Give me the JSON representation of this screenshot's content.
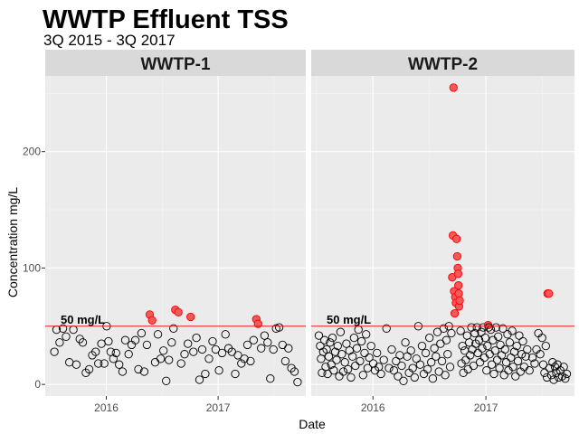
{
  "chart_data": {
    "type": "scatter",
    "title": "WWTP Effluent TSS",
    "subtitle": "3Q 2015 - 3Q 2017",
    "xlabel": "Date",
    "ylabel": "Concentration mg/L",
    "x_ticks": [
      "2016",
      "2017"
    ],
    "y_ticks": [
      0,
      100,
      200
    ],
    "xlim": [
      "2015-06-15",
      "2017-10-15"
    ],
    "ylim": [
      -10,
      265
    ],
    "grid": true,
    "reference_line": {
      "value": 50,
      "label": "50 mg/L",
      "color": "#e41a1c"
    },
    "point_colors": {
      "below": "#000000",
      "above": "#ff0000",
      "above_fill": "#f25a5a"
    },
    "panels": [
      {
        "name": "WWTP-1",
        "points": [
          [
            "2015-07-15",
            28
          ],
          [
            "2015-07-22",
            47
          ],
          [
            "2015-08-01",
            36
          ],
          [
            "2015-08-12",
            48
          ],
          [
            "2015-08-22",
            41
          ],
          [
            "2015-09-02",
            19
          ],
          [
            "2015-09-15",
            47
          ],
          [
            "2015-09-25",
            17
          ],
          [
            "2015-10-06",
            39
          ],
          [
            "2015-10-16",
            36
          ],
          [
            "2015-10-26",
            10
          ],
          [
            "2015-11-06",
            13
          ],
          [
            "2015-11-16",
            25
          ],
          [
            "2015-11-27",
            28
          ],
          [
            "2015-12-06",
            18
          ],
          [
            "2015-12-16",
            35
          ],
          [
            "2015-12-25",
            18
          ],
          [
            "2016-01-02",
            50
          ],
          [
            "2016-01-08",
            37
          ],
          [
            "2016-01-15",
            28
          ],
          [
            "2016-01-24",
            22
          ],
          [
            "2016-02-02",
            27
          ],
          [
            "2016-02-12",
            17
          ],
          [
            "2016-02-23",
            11
          ],
          [
            "2016-03-03",
            38
          ],
          [
            "2016-03-14",
            26
          ],
          [
            "2016-03-24",
            34
          ],
          [
            "2016-04-05",
            38
          ],
          [
            "2016-04-15",
            13
          ],
          [
            "2016-04-25",
            44
          ],
          [
            "2016-05-04",
            11
          ],
          [
            "2016-05-13",
            34
          ],
          [
            "2016-05-22",
            60
          ],
          [
            "2016-05-30",
            55
          ],
          [
            "2016-06-09",
            19
          ],
          [
            "2016-06-18",
            43
          ],
          [
            "2016-06-27",
            22
          ],
          [
            "2016-07-06",
            29
          ],
          [
            "2016-07-15",
            3
          ],
          [
            "2016-07-24",
            21
          ],
          [
            "2016-08-02",
            36
          ],
          [
            "2016-08-08",
            48
          ],
          [
            "2016-08-14",
            64
          ],
          [
            "2016-08-24",
            62
          ],
          [
            "2016-09-02",
            18
          ],
          [
            "2016-09-13",
            26
          ],
          [
            "2016-09-24",
            35
          ],
          [
            "2016-10-03",
            58
          ],
          [
            "2016-10-12",
            28
          ],
          [
            "2016-10-22",
            40
          ],
          [
            "2016-11-01",
            4
          ],
          [
            "2016-11-10",
            30
          ],
          [
            "2016-11-20",
            9
          ],
          [
            "2016-12-02",
            22
          ],
          [
            "2016-12-14",
            37
          ],
          [
            "2016-12-24",
            30
          ],
          [
            "2017-01-04",
            12
          ],
          [
            "2017-01-14",
            27
          ],
          [
            "2017-01-25",
            43
          ],
          [
            "2017-02-04",
            31
          ],
          [
            "2017-02-15",
            28
          ],
          [
            "2017-02-26",
            9
          ],
          [
            "2017-03-07",
            25
          ],
          [
            "2017-03-18",
            18
          ],
          [
            "2017-03-28",
            22
          ],
          [
            "2017-04-07",
            34
          ],
          [
            "2017-04-17",
            20
          ],
          [
            "2017-04-27",
            38
          ],
          [
            "2017-05-06",
            56
          ],
          [
            "2017-05-12",
            52
          ],
          [
            "2017-05-22",
            31
          ],
          [
            "2017-06-02",
            42
          ],
          [
            "2017-06-12",
            36
          ],
          [
            "2017-06-21",
            5
          ],
          [
            "2017-07-01",
            30
          ],
          [
            "2017-07-10",
            48
          ],
          [
            "2017-07-20",
            49
          ],
          [
            "2017-07-31",
            34
          ],
          [
            "2017-08-09",
            20
          ],
          [
            "2017-08-19",
            31
          ],
          [
            "2017-08-29",
            14
          ],
          [
            "2017-09-08",
            11
          ],
          [
            "2017-09-18",
            2
          ]
        ]
      },
      {
        "name": "WWTP-2",
        "points": [
          [
            "2015-07-10",
            42
          ],
          [
            "2015-07-14",
            33
          ],
          [
            "2015-07-17",
            22
          ],
          [
            "2015-07-20",
            10
          ],
          [
            "2015-07-24",
            28
          ],
          [
            "2015-07-28",
            38
          ],
          [
            "2015-08-01",
            15
          ],
          [
            "2015-08-04",
            30
          ],
          [
            "2015-08-07",
            9
          ],
          [
            "2015-08-11",
            24
          ],
          [
            "2015-08-15",
            36
          ],
          [
            "2015-08-19",
            17
          ],
          [
            "2015-08-23",
            40
          ],
          [
            "2015-08-27",
            12
          ],
          [
            "2015-09-01",
            28
          ],
          [
            "2015-09-05",
            21
          ],
          [
            "2015-09-09",
            33
          ],
          [
            "2015-09-14",
            7
          ],
          [
            "2015-09-18",
            45
          ],
          [
            "2015-09-22",
            26
          ],
          [
            "2015-09-27",
            11
          ],
          [
            "2015-10-02",
            19
          ],
          [
            "2015-10-07",
            35
          ],
          [
            "2015-10-12",
            13
          ],
          [
            "2015-10-17",
            29
          ],
          [
            "2015-10-22",
            6
          ],
          [
            "2015-10-27",
            24
          ],
          [
            "2015-11-01",
            40
          ],
          [
            "2015-11-05",
            16
          ],
          [
            "2015-11-10",
            31
          ],
          [
            "2015-11-15",
            47
          ],
          [
            "2015-11-20",
            20
          ],
          [
            "2015-11-25",
            37
          ],
          [
            "2015-11-30",
            8
          ],
          [
            "2015-12-05",
            27
          ],
          [
            "2015-12-10",
            43
          ],
          [
            "2015-12-15",
            14
          ],
          [
            "2015-12-20",
            23
          ],
          [
            "2015-12-26",
            33
          ],
          [
            "2016-01-02",
            18
          ],
          [
            "2016-01-08",
            12
          ],
          [
            "2016-01-14",
            27
          ],
          [
            "2016-01-20",
            15
          ],
          [
            "2016-01-27",
            9
          ],
          [
            "2016-02-05",
            21
          ],
          [
            "2016-02-14",
            48
          ],
          [
            "2016-02-22",
            14
          ],
          [
            "2016-03-02",
            30
          ],
          [
            "2016-03-09",
            12
          ],
          [
            "2016-03-16",
            20
          ],
          [
            "2016-03-22",
            7
          ],
          [
            "2016-03-28",
            25
          ],
          [
            "2016-04-03",
            16
          ],
          [
            "2016-04-09",
            3
          ],
          [
            "2016-04-15",
            36
          ],
          [
            "2016-04-21",
            24
          ],
          [
            "2016-04-27",
            10
          ],
          [
            "2016-05-03",
            29
          ],
          [
            "2016-05-09",
            14
          ],
          [
            "2016-05-15",
            6
          ],
          [
            "2016-05-21",
            22
          ],
          [
            "2016-05-27",
            50
          ],
          [
            "2016-06-02",
            17
          ],
          [
            "2016-06-08",
            33
          ],
          [
            "2016-06-14",
            9
          ],
          [
            "2016-06-20",
            27
          ],
          [
            "2016-06-26",
            13
          ],
          [
            "2016-07-02",
            40
          ],
          [
            "2016-07-08",
            19
          ],
          [
            "2016-07-13",
            5
          ],
          [
            "2016-07-18",
            31
          ],
          [
            "2016-07-23",
            24
          ],
          [
            "2016-07-28",
            45
          ],
          [
            "2016-08-02",
            11
          ],
          [
            "2016-08-07",
            35
          ],
          [
            "2016-08-12",
            20
          ],
          [
            "2016-08-17",
            48
          ],
          [
            "2016-08-22",
            8
          ],
          [
            "2016-08-26",
            38
          ],
          [
            "2016-08-30",
            26
          ],
          [
            "2016-09-03",
            50
          ],
          [
            "2016-09-07",
            15
          ],
          [
            "2016-09-11",
            44
          ],
          [
            "2016-09-14",
            92
          ],
          [
            "2016-09-16",
            128
          ],
          [
            "2016-09-18",
            255
          ],
          [
            "2016-09-20",
            80
          ],
          [
            "2016-09-22",
            61
          ],
          [
            "2016-09-24",
            75
          ],
          [
            "2016-09-26",
            70
          ],
          [
            "2016-09-28",
            125
          ],
          [
            "2016-09-30",
            110
          ],
          [
            "2016-10-02",
            100
          ],
          [
            "2016-10-03",
            95
          ],
          [
            "2016-10-04",
            85
          ],
          [
            "2016-10-05",
            78
          ],
          [
            "2016-10-06",
            67
          ],
          [
            "2016-10-08",
            72
          ],
          [
            "2016-10-11",
            46
          ],
          [
            "2016-10-14",
            18
          ],
          [
            "2016-10-17",
            33
          ],
          [
            "2016-10-20",
            10
          ],
          [
            "2016-10-24",
            29
          ],
          [
            "2016-10-28",
            21
          ],
          [
            "2016-11-01",
            42
          ],
          [
            "2016-11-04",
            13
          ],
          [
            "2016-11-08",
            36
          ],
          [
            "2016-11-11",
            25
          ],
          [
            "2016-11-15",
            49
          ],
          [
            "2016-11-18",
            30
          ],
          [
            "2016-11-22",
            16
          ],
          [
            "2016-11-26",
            44
          ],
          [
            "2016-11-29",
            35
          ],
          [
            "2016-12-03",
            49
          ],
          [
            "2016-12-06",
            27
          ],
          [
            "2016-12-10",
            38
          ],
          [
            "2016-12-13",
            19
          ],
          [
            "2016-12-17",
            45
          ],
          [
            "2016-12-20",
            31
          ],
          [
            "2016-12-23",
            49
          ],
          [
            "2016-12-27",
            23
          ],
          [
            "2016-12-30",
            40
          ],
          [
            "2017-01-03",
            12
          ],
          [
            "2017-01-06",
            33
          ],
          [
            "2017-01-08",
            51
          ],
          [
            "2017-01-10",
            49
          ],
          [
            "2017-01-13",
            26
          ],
          [
            "2017-01-17",
            47
          ],
          [
            "2017-01-20",
            17
          ],
          [
            "2017-01-24",
            38
          ],
          [
            "2017-01-27",
            9
          ],
          [
            "2017-01-31",
            29
          ],
          [
            "2017-02-03",
            49
          ],
          [
            "2017-02-07",
            21
          ],
          [
            "2017-02-10",
            41
          ],
          [
            "2017-02-14",
            14
          ],
          [
            "2017-02-17",
            34
          ],
          [
            "2017-02-21",
            25
          ],
          [
            "2017-02-25",
            48
          ],
          [
            "2017-03-01",
            8
          ],
          [
            "2017-03-04",
            30
          ],
          [
            "2017-03-08",
            19
          ],
          [
            "2017-03-12",
            43
          ],
          [
            "2017-03-15",
            12
          ],
          [
            "2017-03-19",
            36
          ],
          [
            "2017-03-23",
            23
          ],
          [
            "2017-03-27",
            46
          ],
          [
            "2017-03-30",
            15
          ],
          [
            "2017-04-03",
            28
          ],
          [
            "2017-04-07",
            7
          ],
          [
            "2017-04-11",
            33
          ],
          [
            "2017-04-15",
            20
          ],
          [
            "2017-04-19",
            42
          ],
          [
            "2017-04-23",
            11
          ],
          [
            "2017-04-27",
            26
          ],
          [
            "2017-05-01",
            37
          ],
          [
            "2017-05-05",
            15
          ],
          [
            "2017-05-10",
            24
          ],
          [
            "2017-05-15",
            30
          ],
          [
            "2017-05-22",
            12
          ],
          [
            "2017-06-01",
            23
          ],
          [
            "2017-06-08",
            18
          ],
          [
            "2017-06-14",
            30
          ],
          [
            "2017-06-20",
            44
          ],
          [
            "2017-06-26",
            26
          ],
          [
            "2017-07-02",
            40
          ],
          [
            "2017-07-06",
            17
          ],
          [
            "2017-07-10",
            10
          ],
          [
            "2017-07-14",
            33
          ],
          [
            "2017-07-18",
            6
          ],
          [
            "2017-07-20",
            78
          ],
          [
            "2017-07-24",
            78
          ],
          [
            "2017-07-26",
            14
          ],
          [
            "2017-08-01",
            8
          ],
          [
            "2017-08-05",
            19
          ],
          [
            "2017-08-09",
            4
          ],
          [
            "2017-08-13",
            15
          ],
          [
            "2017-08-17",
            10
          ],
          [
            "2017-08-21",
            17
          ],
          [
            "2017-08-25",
            6
          ],
          [
            "2017-08-30",
            12
          ],
          [
            "2017-09-05",
            7
          ],
          [
            "2017-09-10",
            15
          ],
          [
            "2017-09-15",
            5
          ],
          [
            "2017-09-20",
            9
          ]
        ]
      }
    ]
  }
}
